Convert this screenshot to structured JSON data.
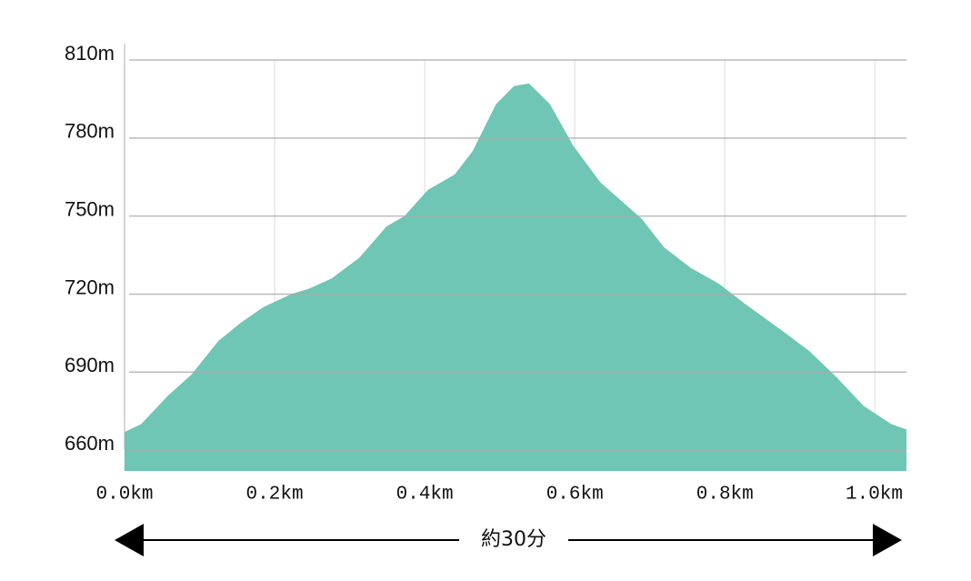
{
  "chart_data": {
    "type": "area",
    "x": [
      0,
      0.022,
      0.058,
      0.089,
      0.125,
      0.155,
      0.185,
      0.222,
      0.245,
      0.276,
      0.313,
      0.349,
      0.373,
      0.404,
      0.44,
      0.464,
      0.495,
      0.519,
      0.539,
      0.567,
      0.598,
      0.634,
      0.689,
      0.719,
      0.755,
      0.792,
      0.828,
      0.876,
      0.913,
      0.949,
      0.985,
      1.022,
      1.042
    ],
    "values": [
      667,
      670,
      681,
      689,
      702,
      709,
      715,
      720,
      722,
      726,
      734,
      746,
      750,
      760,
      766,
      775,
      793,
      800,
      801,
      793,
      777,
      763,
      749,
      738,
      730,
      724,
      716,
      706,
      698,
      688,
      677,
      670,
      668
    ],
    "color": "#6cc5b3",
    "xlim": [
      0,
      1.042
    ],
    "ylim": [
      652,
      810
    ],
    "xticks": [
      {
        "value": 0,
        "label": "0.0km"
      },
      {
        "value": 0.2,
        "label": "0.2km"
      },
      {
        "value": 0.4,
        "label": "0.4km"
      },
      {
        "value": 0.6,
        "label": "0.6km"
      },
      {
        "value": 0.8,
        "label": "0.8km"
      },
      {
        "value": 1.0,
        "label": "1.0km"
      }
    ],
    "yticks": [
      {
        "value": 660,
        "label": "660m"
      },
      {
        "value": 690,
        "label": "690m"
      },
      {
        "value": 720,
        "label": "720m"
      },
      {
        "value": 750,
        "label": "750m"
      },
      {
        "value": 780,
        "label": "780m"
      },
      {
        "value": 810,
        "label": "810m"
      }
    ],
    "grid": true,
    "annotation": "約30分"
  }
}
